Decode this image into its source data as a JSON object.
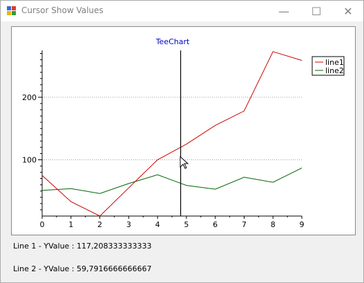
{
  "window": {
    "title": "Cursor Show Values",
    "controls": {
      "minimize": "—",
      "maximize": "☐",
      "close": "✕"
    }
  },
  "labels": {
    "line1": "Line 1 - YValue : 117,208333333333",
    "line2": "Line 2 - YValue : 59,7916666666667"
  },
  "chart_data": {
    "type": "line",
    "title": "TeeChart",
    "x": [
      0,
      1,
      2,
      3,
      4,
      5,
      6,
      7,
      8,
      9
    ],
    "xlim": [
      0,
      9
    ],
    "ylim": [
      10,
      275
    ],
    "yticks": [
      100,
      200
    ],
    "xticks": [
      0,
      1,
      2,
      3,
      4,
      5,
      6,
      7,
      8,
      9
    ],
    "grid": true,
    "legend_position": "top-right",
    "cursor_x": 4.8,
    "series": [
      {
        "name": "line1",
        "color": "#cc0000",
        "values": [
          75,
          33,
          10,
          55,
          100,
          125,
          155,
          178,
          273,
          259
        ]
      },
      {
        "name": "line2",
        "color": "#006400",
        "values": [
          51,
          54,
          46,
          62,
          76,
          59,
          53,
          72,
          64,
          87
        ]
      }
    ]
  }
}
